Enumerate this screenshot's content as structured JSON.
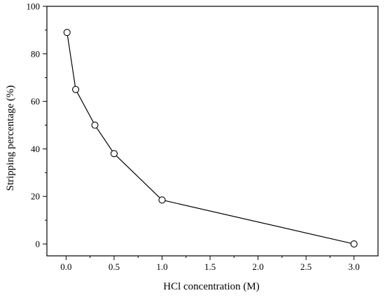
{
  "chart_data": {
    "type": "line",
    "title": "",
    "xlabel": "HCl concentration (M)",
    "ylabel": "Stripping percentage (%)",
    "xlim": [
      -0.2,
      3.25
    ],
    "ylim": [
      -5,
      100
    ],
    "xticks": [
      0.0,
      0.5,
      1.0,
      1.5,
      2.0,
      2.5,
      3.0
    ],
    "xtick_labels": [
      "0.0",
      "0.5",
      "1.0",
      "1.5",
      "2.0",
      "2.5",
      "3.0"
    ],
    "yticks": [
      0,
      20,
      40,
      60,
      80,
      100
    ],
    "ytick_labels": [
      "0",
      "20",
      "40",
      "60",
      "80",
      "100"
    ],
    "grid": false,
    "legend": "none",
    "marker": "open-circle",
    "line_color": "#000000",
    "series": [
      {
        "x": [
          0.01,
          0.1,
          0.3,
          0.5,
          1.0,
          3.0
        ],
        "y": [
          89,
          65,
          50,
          38,
          18.5,
          0
        ]
      }
    ]
  }
}
